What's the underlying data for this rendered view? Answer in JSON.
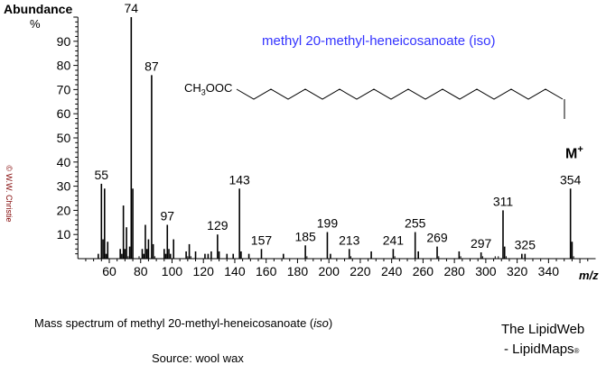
{
  "chart_data": {
    "type": "bar",
    "title": "methyl 20-methyl-heneicosanoate  (iso)",
    "ylabel": "Abundance",
    "ylabel_unit": "%",
    "xlabel": "m/z",
    "xlim": [
      40,
      370
    ],
    "ylim": [
      0,
      100
    ],
    "xticks": [
      60,
      80,
      100,
      120,
      140,
      160,
      180,
      200,
      220,
      240,
      260,
      280,
      300,
      320,
      340
    ],
    "yticks": [
      10,
      20,
      30,
      40,
      50,
      60,
      70,
      80,
      90
    ],
    "peaks": [
      {
        "mz": 53,
        "ab": 2
      },
      {
        "mz": 55,
        "ab": 31,
        "label": "55"
      },
      {
        "mz": 56,
        "ab": 8
      },
      {
        "mz": 57,
        "ab": 29
      },
      {
        "mz": 58,
        "ab": 2
      },
      {
        "mz": 59,
        "ab": 7
      },
      {
        "mz": 67,
        "ab": 4
      },
      {
        "mz": 68,
        "ab": 2
      },
      {
        "mz": 69,
        "ab": 22
      },
      {
        "mz": 70,
        "ab": 4
      },
      {
        "mz": 71,
        "ab": 13
      },
      {
        "mz": 72,
        "ab": 1
      },
      {
        "mz": 73,
        "ab": 5
      },
      {
        "mz": 74,
        "ab": 100,
        "label": "74"
      },
      {
        "mz": 75,
        "ab": 29
      },
      {
        "mz": 79,
        "ab": 1
      },
      {
        "mz": 81,
        "ab": 4
      },
      {
        "mz": 82,
        "ab": 2
      },
      {
        "mz": 83,
        "ab": 14
      },
      {
        "mz": 84,
        "ab": 4
      },
      {
        "mz": 85,
        "ab": 8
      },
      {
        "mz": 87,
        "ab": 76,
        "label": "87"
      },
      {
        "mz": 88,
        "ab": 6
      },
      {
        "mz": 89,
        "ab": 1
      },
      {
        "mz": 95,
        "ab": 4
      },
      {
        "mz": 96,
        "ab": 2
      },
      {
        "mz": 97,
        "ab": 14,
        "label": "97"
      },
      {
        "mz": 98,
        "ab": 4
      },
      {
        "mz": 99,
        "ab": 2
      },
      {
        "mz": 101,
        "ab": 8
      },
      {
        "mz": 109,
        "ab": 3
      },
      {
        "mz": 110,
        "ab": 1
      },
      {
        "mz": 111,
        "ab": 6
      },
      {
        "mz": 112,
        "ab": 1
      },
      {
        "mz": 115,
        "ab": 3
      },
      {
        "mz": 121,
        "ab": 2
      },
      {
        "mz": 123,
        "ab": 2
      },
      {
        "mz": 125,
        "ab": 3
      },
      {
        "mz": 129,
        "ab": 10,
        "label": "129"
      },
      {
        "mz": 130,
        "ab": 3
      },
      {
        "mz": 135,
        "ab": 2
      },
      {
        "mz": 139,
        "ab": 2
      },
      {
        "mz": 143,
        "ab": 29,
        "label": "143"
      },
      {
        "mz": 144,
        "ab": 3
      },
      {
        "mz": 149,
        "ab": 2
      },
      {
        "mz": 157,
        "ab": 4,
        "label": "157"
      },
      {
        "mz": 171,
        "ab": 2
      },
      {
        "mz": 185,
        "ab": 5.5,
        "label": "185"
      },
      {
        "mz": 186,
        "ab": 1
      },
      {
        "mz": 199,
        "ab": 11,
        "label": "199"
      },
      {
        "mz": 201,
        "ab": 2
      },
      {
        "mz": 213,
        "ab": 4,
        "label": "213"
      },
      {
        "mz": 214,
        "ab": 1
      },
      {
        "mz": 227,
        "ab": 3
      },
      {
        "mz": 241,
        "ab": 4,
        "label": "241"
      },
      {
        "mz": 242,
        "ab": 1
      },
      {
        "mz": 255,
        "ab": 11,
        "label": "255"
      },
      {
        "mz": 257,
        "ab": 3
      },
      {
        "mz": 269,
        "ab": 5,
        "label": "269"
      },
      {
        "mz": 270,
        "ab": 1
      },
      {
        "mz": 283,
        "ab": 3
      },
      {
        "mz": 284,
        "ab": 1
      },
      {
        "mz": 297,
        "ab": 2.6,
        "label": "297"
      },
      {
        "mz": 298,
        "ab": 1
      },
      {
        "mz": 306,
        "ab": 1
      },
      {
        "mz": 308,
        "ab": 1
      },
      {
        "mz": 311,
        "ab": 20,
        "label": "311"
      },
      {
        "mz": 312,
        "ab": 5
      },
      {
        "mz": 313,
        "ab": 1
      },
      {
        "mz": 323,
        "ab": 2
      },
      {
        "mz": 325,
        "ab": 2,
        "label": "325"
      },
      {
        "mz": 354,
        "ab": 29,
        "label": "354"
      },
      {
        "mz": 355,
        "ab": 7
      },
      {
        "mz": 356,
        "ab": 1
      }
    ],
    "annotation_molecular_ion": "M",
    "annotation_molecular_ion_sup": "+"
  },
  "structure_label_prefix": "CH",
  "structure_label_sub": "3",
  "structure_label_suffix": "OOC",
  "copyright": "© W.W. Christie",
  "caption_main": "Mass spectrum of methyl 20-methyl-heneicosanoate (",
  "caption_iso": "iso",
  "caption_end": ")",
  "source": "Source:  wool wax",
  "brand_line1": "The LipidWeb",
  "brand_line2": "- LipidMaps",
  "brand_reg": "®",
  "colors": {
    "title": "#3333ff",
    "copyright": "#800000"
  }
}
